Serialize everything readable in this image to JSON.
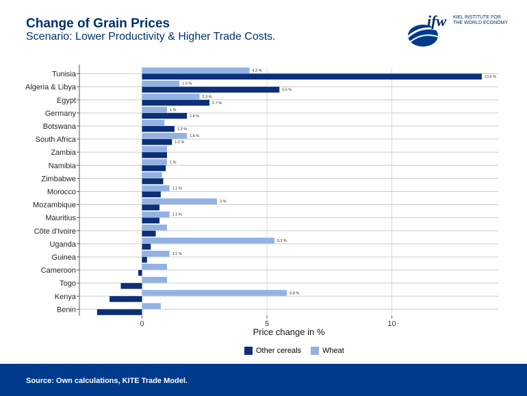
{
  "header": {
    "title": "Change of Grain Prices",
    "subtitle": "Scenario: Lower Productivity & Higher Trade Costs."
  },
  "logo": {
    "mark": "ifw",
    "line1": "KIEL INSTITUTE FOR",
    "line2": "THE WORLD ECONOMY"
  },
  "footer": {
    "source": "Source: Own calculations, KITE Trade Model."
  },
  "colors": {
    "other_cereals": "#0b2f78",
    "wheat": "#91b2e3",
    "footer": "#003a8c"
  },
  "chart_data": {
    "type": "bar",
    "orientation": "horizontal",
    "xlabel": "Price change in %",
    "xlim": [
      -1.8,
      14.3
    ],
    "xticks": [
      0,
      5,
      10
    ],
    "grid": true,
    "legend_position": "bottom",
    "categories": [
      "Tunisia",
      "Algeria & Libya",
      "Egypt",
      "Germany",
      "Botswana",
      "South Africa",
      "Zambia",
      "Namibia",
      "Zimbabwe",
      "Morocco",
      "Mozambique",
      "Mauritius",
      "Côte d'Ivoire",
      "Uganda",
      "Guinea",
      "Cameroon",
      "Togo",
      "Kenya",
      "Benin"
    ],
    "series": [
      {
        "name": "Wheat",
        "values": [
          4.3,
          1.5,
          2.3,
          1.0,
          0.9,
          1.8,
          1.0,
          1.0,
          0.8,
          1.1,
          3.0,
          1.1,
          1.0,
          5.3,
          1.1,
          1.0,
          1.0,
          5.8,
          0.75
        ],
        "labels": [
          "4.3 %",
          "1.5 %",
          "2.3 %",
          "1 %",
          "",
          "1.8 %",
          "",
          "1 %",
          "",
          "1.1 %",
          "3 %",
          "1.1 %",
          "",
          "5.3 %",
          "1.1 %",
          "",
          "",
          "5.8 %",
          ""
        ]
      },
      {
        "name": "Other cereals",
        "values": [
          13.6,
          5.5,
          2.7,
          1.8,
          1.3,
          1.2,
          1.0,
          0.95,
          0.85,
          0.75,
          0.7,
          0.7,
          0.55,
          0.35,
          0.2,
          -0.15,
          -0.85,
          -1.3,
          -1.8
        ],
        "labels": [
          "13.6 %",
          "5.5 %",
          "2.7 %",
          "1.8 %",
          "1.3 %",
          "1.2 %",
          "",
          "",
          "",
          "",
          "",
          "",
          "",
          "",
          "",
          "",
          "",
          "",
          ""
        ]
      }
    ]
  }
}
